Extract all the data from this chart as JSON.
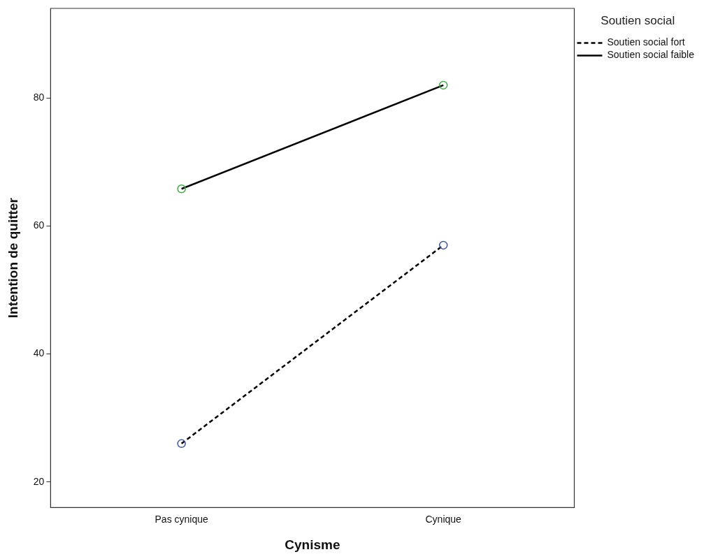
{
  "chart_data": {
    "type": "line",
    "xlabel": "Cynisme",
    "ylabel": "Intention de quitter",
    "legend_title": "Soutien social",
    "categories": [
      "Pas cynique",
      "Cynique"
    ],
    "series": [
      {
        "name": "Soutien social fort",
        "color": "#000000",
        "colors": [
          "#3d57b0",
          "#3d57b0"
        ],
        "line_style": "dashed",
        "values": [
          26,
          57
        ]
      },
      {
        "name": "Soutien social faible",
        "color": "#000000",
        "colors": [
          "#3cb043",
          "#3cb043"
        ],
        "line_style": "solid",
        "values": [
          65.8,
          82
        ]
      }
    ],
    "ylim": [
      16,
      94
    ],
    "yticks": [
      20,
      40,
      60,
      80
    ],
    "grid": false,
    "legend": "top right",
    "marker": "circle"
  }
}
